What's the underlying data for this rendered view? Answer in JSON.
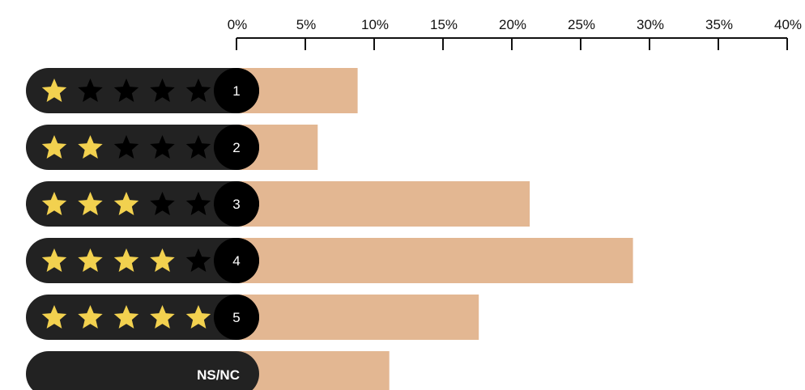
{
  "chart_data": {
    "type": "bar",
    "orientation": "horizontal",
    "categories": [
      "1",
      "2",
      "3",
      "4",
      "5",
      "NS/NC"
    ],
    "stars_filled": [
      1,
      2,
      3,
      4,
      5,
      0
    ],
    "values": [
      8.8,
      5.9,
      21.3,
      28.8,
      17.6,
      11.1
    ],
    "unit": "%",
    "xlim": [
      0,
      40
    ],
    "x_ticks": [
      "0%",
      "5%",
      "10%",
      "15%",
      "20%",
      "25%",
      "30%",
      "35%",
      "40%"
    ],
    "x_axis_position": "top",
    "grid": false,
    "legend": "none"
  },
  "colors": {
    "bar": "#E3B792",
    "pill": "#222222",
    "badge": "#000000",
    "star_filled": "#F2D14F",
    "star_empty": "#000000",
    "axis": "#111111"
  }
}
